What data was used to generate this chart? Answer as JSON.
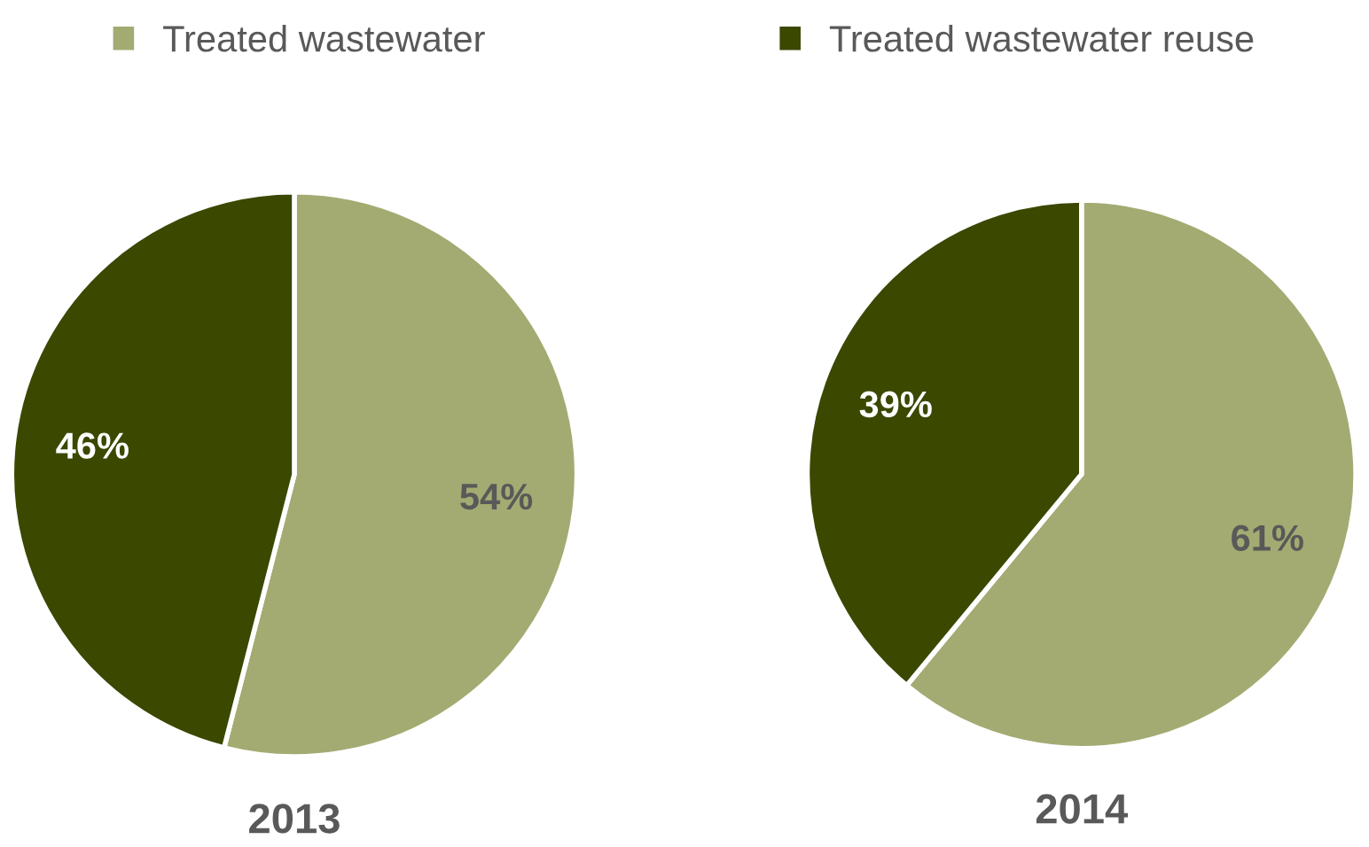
{
  "chart_data": [
    {
      "type": "pie",
      "title": "2013",
      "categories": [
        "Treated wastewater",
        "Treated wastewater reuse"
      ],
      "values": [
        54,
        46
      ],
      "value_labels": [
        "54%",
        "46%"
      ],
      "colors": [
        "#a3ab72",
        "#3a4800"
      ],
      "legend": "top"
    },
    {
      "type": "pie",
      "title": "2014",
      "categories": [
        null,
        null
      ],
      "values": [
        61,
        39
      ],
      "value_labels": [
        "61%",
        "39%"
      ],
      "colors": [
        "#a3ab72",
        "#3a4800"
      ]
    }
  ]
}
